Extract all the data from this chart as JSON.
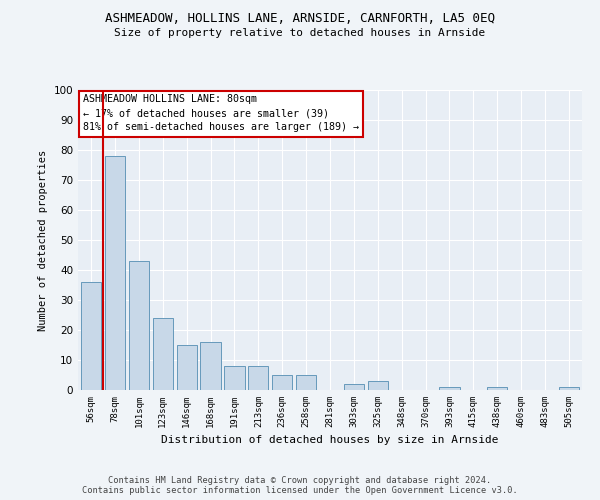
{
  "title1": "ASHMEADOW, HOLLINS LANE, ARNSIDE, CARNFORTH, LA5 0EQ",
  "title2": "Size of property relative to detached houses in Arnside",
  "xlabel": "Distribution of detached houses by size in Arnside",
  "ylabel": "Number of detached properties",
  "categories": [
    "56sqm",
    "78sqm",
    "101sqm",
    "123sqm",
    "146sqm",
    "168sqm",
    "191sqm",
    "213sqm",
    "236sqm",
    "258sqm",
    "281sqm",
    "303sqm",
    "325sqm",
    "348sqm",
    "370sqm",
    "393sqm",
    "415sqm",
    "438sqm",
    "460sqm",
    "483sqm",
    "505sqm"
  ],
  "values": [
    36,
    78,
    43,
    24,
    15,
    16,
    8,
    8,
    5,
    5,
    0,
    2,
    3,
    0,
    0,
    1,
    0,
    1,
    0,
    0,
    1
  ],
  "bar_color": "#c8d8e8",
  "bar_edge_color": "#6699bb",
  "vline_color": "#cc0000",
  "annotation_title": "ASHMEADOW HOLLINS LANE: 80sqm",
  "annotation_line1": "← 17% of detached houses are smaller (39)",
  "annotation_line2": "81% of semi-detached houses are larger (189) →",
  "annotation_box_color": "#ffffff",
  "annotation_box_edge": "#cc0000",
  "ylim": [
    0,
    100
  ],
  "yticks": [
    0,
    10,
    20,
    30,
    40,
    50,
    60,
    70,
    80,
    90,
    100
  ],
  "footer1": "Contains HM Land Registry data © Crown copyright and database right 2024.",
  "footer2": "Contains public sector information licensed under the Open Government Licence v3.0.",
  "bg_color": "#f0f4f8",
  "plot_bg_color": "#e8eef5"
}
